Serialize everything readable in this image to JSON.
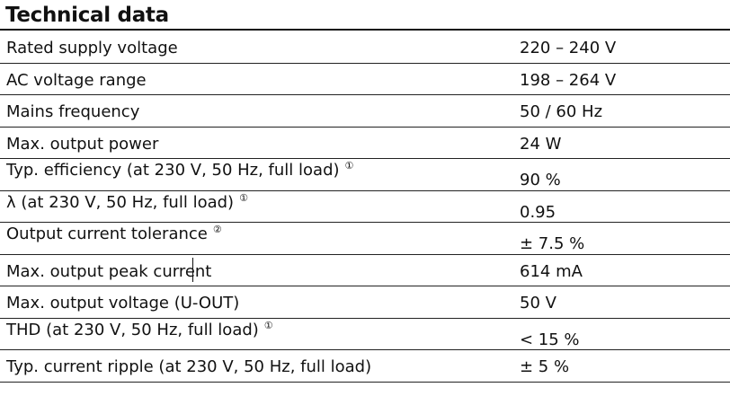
{
  "title": "Technical data",
  "rows": [
    {
      "label": "Rated supply voltage",
      "note": "",
      "value": "220 – 240 V"
    },
    {
      "label": "AC voltage range",
      "note": "",
      "value": "198 – 264 V"
    },
    {
      "label": "Mains frequency",
      "note": "",
      "value": "50 / 60 Hz"
    },
    {
      "label": "Max. output power",
      "note": "",
      "value": "24 W"
    },
    {
      "label": "Typ. efficiency (at 230 V, 50 Hz, full load)",
      "note": "①",
      "value": "90 %"
    },
    {
      "label": "λ (at 230 V, 50 Hz, full load)",
      "note": "①",
      "value": "0.95"
    },
    {
      "label": "Output current tolerance",
      "note": "②",
      "value": "± 7.5 %"
    },
    {
      "label": "Max. output peak current",
      "note": "",
      "value": "614 mA"
    },
    {
      "label": "Max. output voltage (U-OUT)",
      "note": "",
      "value": "50 V"
    },
    {
      "label": "THD (at 230 V, 50 Hz, full load)",
      "note": "①",
      "value": "< 15 %"
    },
    {
      "label": "Typ. current ripple (at 230 V, 50 Hz, full load)",
      "note": "",
      "value": "± 5 %"
    }
  ]
}
